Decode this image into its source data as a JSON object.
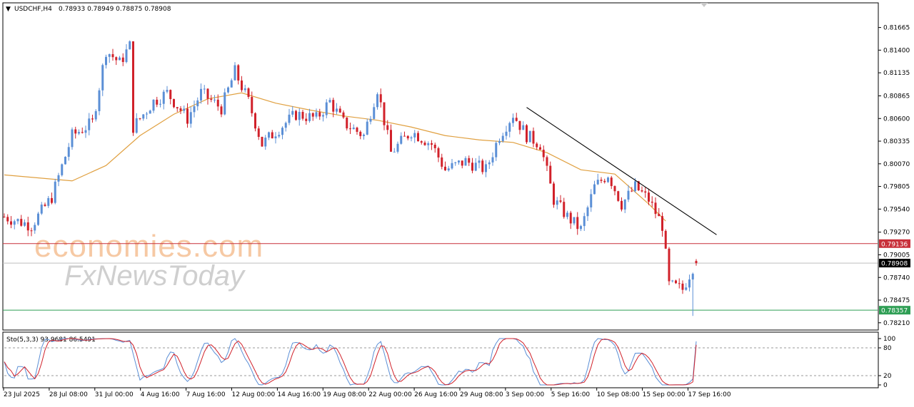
{
  "header": {
    "symbol": "USDCHF,H4",
    "ohlc": "0.78933 0.78949 0.78875 0.78908"
  },
  "watermark": {
    "line1": "economies.com",
    "line2": "FxNewsToday"
  },
  "stochastic": {
    "label": "Sto(5,3,3) 93.9681 86.5491",
    "levels": [
      100,
      80,
      20,
      0
    ]
  },
  "colors": {
    "bull": "#5b8fd6",
    "bear": "#d1212a",
    "ma": "#e0a040",
    "trendline": "#000000",
    "resistance": "#c8303a",
    "support": "#2e9e54",
    "current": "#000000"
  },
  "chart_data": {
    "type": "candlestick",
    "title": "USDCHF,H4",
    "ylim": [
      0.7815,
      0.8192
    ],
    "y_ticks": [
      "0.81665",
      "0.81400",
      "0.81135",
      "0.80865",
      "0.80600",
      "0.80335",
      "0.80070",
      "0.79805",
      "0.79540",
      "0.79270",
      "0.79005",
      "0.78740",
      "0.78475",
      "0.78210"
    ],
    "x_ticks": [
      "23 Jul 2025",
      "28 Jul 08:00",
      "31 Jul 00:00",
      "4 Aug 16:00",
      "7 Aug 16:00",
      "12 Aug 00:00",
      "14 Aug 16:00",
      "19 Aug 08:00",
      "22 Aug 00:00",
      "26 Aug 16:00",
      "29 Aug 08:00",
      "3 Sep 00:00",
      "5 Sep 16:00",
      "10 Sep 08:00",
      "15 Sep 00:00",
      "17 Sep 16:00"
    ],
    "close_path": [
      [
        0,
        0.7945
      ],
      [
        8,
        0.7935
      ],
      [
        14,
        0.7968
      ],
      [
        20,
        0.804
      ],
      [
        26,
        0.8055
      ],
      [
        30,
        0.814
      ],
      [
        34,
        0.8125
      ],
      [
        37,
        0.8145
      ],
      [
        38,
        0.805
      ],
      [
        44,
        0.808
      ],
      [
        48,
        0.809
      ],
      [
        54,
        0.806
      ],
      [
        58,
        0.809
      ],
      [
        64,
        0.8072
      ],
      [
        68,
        0.8115
      ],
      [
        72,
        0.808
      ],
      [
        76,
        0.803
      ],
      [
        80,
        0.8045
      ],
      [
        86,
        0.8065
      ],
      [
        92,
        0.806
      ],
      [
        96,
        0.808
      ],
      [
        100,
        0.8055
      ],
      [
        106,
        0.804
      ],
      [
        110,
        0.8095
      ],
      [
        114,
        0.802
      ],
      [
        120,
        0.8045
      ],
      [
        126,
        0.803
      ],
      [
        130,
        0.8
      ],
      [
        136,
        0.801
      ],
      [
        142,
        0.8
      ],
      [
        146,
        0.804
      ],
      [
        150,
        0.8065
      ],
      [
        154,
        0.804
      ],
      [
        158,
        0.803
      ],
      [
        162,
        0.7965
      ],
      [
        166,
        0.7945
      ],
      [
        170,
        0.793
      ],
      [
        174,
        0.798
      ],
      [
        178,
        0.7995
      ],
      [
        182,
        0.796
      ],
      [
        186,
        0.798
      ],
      [
        190,
        0.7965
      ],
      [
        194,
        0.7935
      ],
      [
        196,
        0.7865
      ],
      [
        200,
        0.786
      ],
      [
        204,
        0.7895
      ]
    ],
    "ohlc_last": {
      "open": 0.78933,
      "high": 0.78949,
      "low": 0.78875,
      "close": 0.78908
    },
    "moving_average": [
      [
        0,
        0.7994
      ],
      [
        20,
        0.7987
      ],
      [
        30,
        0.8005
      ],
      [
        40,
        0.804
      ],
      [
        50,
        0.8065
      ],
      [
        60,
        0.8083
      ],
      [
        70,
        0.809
      ],
      [
        80,
        0.8078
      ],
      [
        90,
        0.807
      ],
      [
        100,
        0.8063
      ],
      [
        110,
        0.8058
      ],
      [
        120,
        0.805
      ],
      [
        130,
        0.804
      ],
      [
        140,
        0.8035
      ],
      [
        150,
        0.8032
      ],
      [
        160,
        0.802
      ],
      [
        170,
        0.8
      ],
      [
        180,
        0.7995
      ],
      [
        190,
        0.796
      ],
      [
        195,
        0.794
      ]
    ],
    "trendline": {
      "from": {
        "bar": 154,
        "price": 0.8073
      },
      "to": {
        "bar": 210,
        "price": 0.7924
      }
    },
    "horizontal_lines": [
      {
        "price": 0.79136,
        "label": "0.79136",
        "role": "resistance"
      },
      {
        "price": 0.78908,
        "label": "0.78908",
        "role": "current"
      },
      {
        "price": 0.78357,
        "label": "0.78357",
        "role": "support"
      }
    ],
    "last_bar_low_wick": 0.7829
  }
}
